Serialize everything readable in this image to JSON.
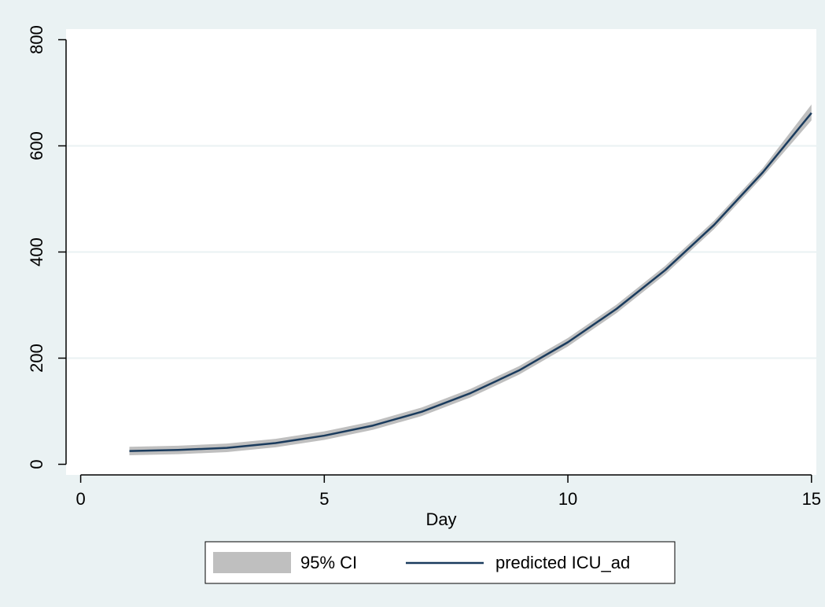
{
  "chart_data": {
    "type": "line",
    "title": "",
    "xlabel": "Day",
    "ylabel": "",
    "xlim": [
      -0.3,
      15.1
    ],
    "ylim": [
      -20,
      820
    ],
    "xticks": [
      0,
      5,
      10,
      15
    ],
    "yticks": [
      0,
      200,
      400,
      600,
      800
    ],
    "grid": true,
    "legend_position": "bottom",
    "series": [
      {
        "name": "predicted ICU_ad",
        "kind": "line",
        "color": "#1a3b5d",
        "x": [
          1,
          2,
          3,
          4,
          5,
          6,
          7,
          8,
          9,
          10,
          11,
          12,
          13,
          14,
          15
        ],
        "y": [
          25,
          27,
          31,
          40,
          54,
          73,
          99,
          134,
          177,
          230,
          293,
          366,
          451,
          550,
          662
        ]
      },
      {
        "name": "95% CI",
        "kind": "band",
        "color": "#bfbfbf",
        "x": [
          1,
          2,
          3,
          4,
          5,
          6,
          7,
          8,
          9,
          10,
          11,
          12,
          13,
          14,
          15
        ],
        "lower": [
          17,
          19,
          23,
          32,
          46,
          65,
          91,
          126,
          169,
          222,
          285,
          358,
          443,
          542,
          648
        ],
        "upper": [
          33,
          35,
          39,
          48,
          62,
          81,
          107,
          142,
          185,
          238,
          301,
          374,
          459,
          558,
          678
        ]
      }
    ],
    "legend": {
      "entries": [
        "95% CI",
        "predicted ICU_ad"
      ]
    }
  }
}
